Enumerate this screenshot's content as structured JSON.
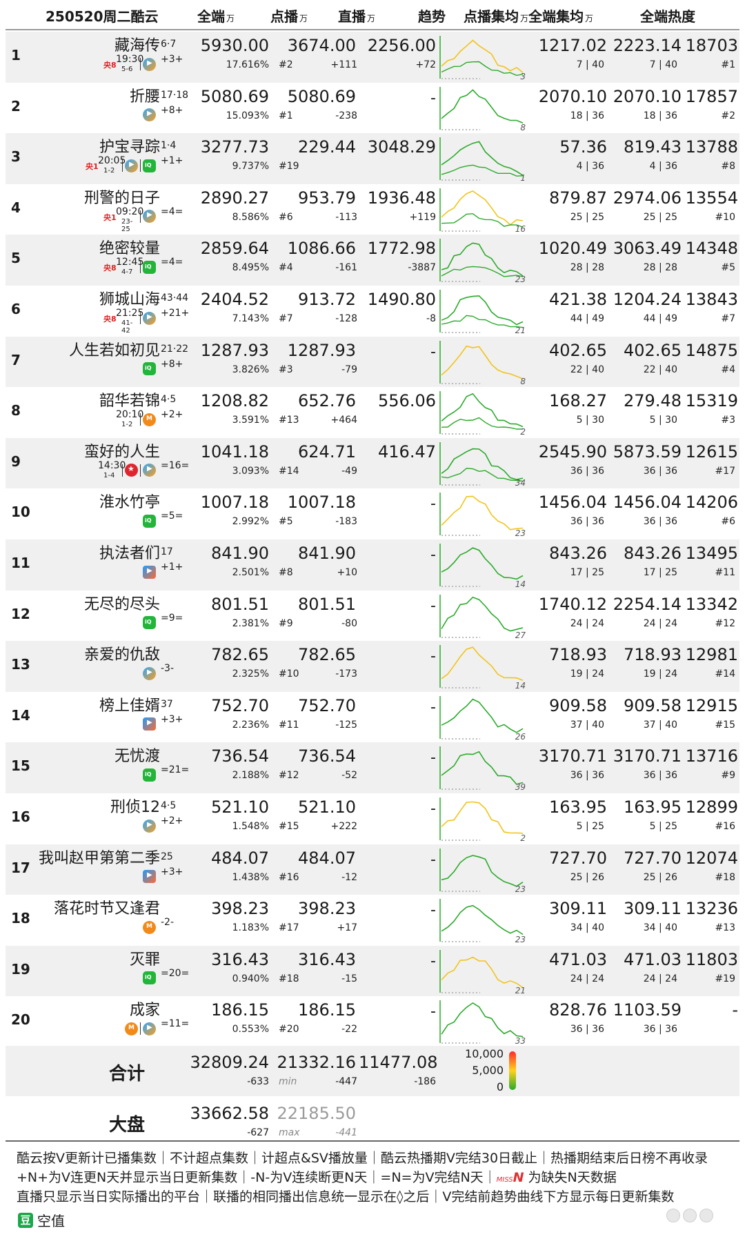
{
  "header": {
    "date_title": "250520周二酷云",
    "all": "全端",
    "vod": "点播",
    "live": "直播",
    "trend": "趋势",
    "vod_avg": "点播集均",
    "all_avg": "全端集均",
    "heat": "全端热度",
    "unit": "万"
  },
  "rows": [
    {
      "rank": "1",
      "title": "藏海传",
      "eps": "6·7",
      "change": "+3+",
      "tv": {
        "channel": "央8",
        "time": "19:30",
        "ep": "5-6"
      },
      "platforms": [
        "tencent-video"
      ],
      "all": "5930.00",
      "share": "17.616%",
      "vod": "3674.00",
      "vod_rank": "#2",
      "vod_delta": "+111",
      "live": "2256.00",
      "live_delta": "+72",
      "trend_days": "3",
      "vod_avg": "1217.02",
      "vod_avg_sub": "7 | 40",
      "all_avg": "2223.14",
      "all_avg_sub": "7 | 40",
      "heat": "18703",
      "heat_rank": "#1"
    },
    {
      "rank": "2",
      "title": "折腰",
      "eps": "17·18",
      "change": "+8+",
      "tv": null,
      "platforms": [
        "tencent-video"
      ],
      "all": "5080.69",
      "share": "15.093%",
      "vod": "5080.69",
      "vod_rank": "#1",
      "vod_delta": "-238",
      "live": "-",
      "live_delta": "",
      "trend_days": "8",
      "vod_avg": "2070.10",
      "vod_avg_sub": "18 | 36",
      "all_avg": "2070.10",
      "all_avg_sub": "18 | 36",
      "heat": "17857",
      "heat_rank": "#2"
    },
    {
      "rank": "3",
      "title": "护宝寻踪",
      "eps": "1·4",
      "change": "+1+",
      "tv": {
        "channel": "央1",
        "time": "20:05",
        "ep": "1-2"
      },
      "platforms": [
        "tencent-video",
        "iqiyi"
      ],
      "all": "3277.73",
      "share": "9.737%",
      "vod": "229.44",
      "vod_rank": "#19",
      "vod_delta": "",
      "live": "3048.29",
      "live_delta": "",
      "trend_days": "1",
      "vod_avg": "57.36",
      "vod_avg_sub": "4 | 36",
      "all_avg": "819.43",
      "all_avg_sub": "4 | 36",
      "heat": "13788",
      "heat_rank": "#8"
    },
    {
      "rank": "4",
      "title": "刑警的日子",
      "eps": "",
      "change": "=4=",
      "tv": {
        "channel": "央1",
        "time": "09:20",
        "ep": "23-25"
      },
      "platforms": [
        "tencent-video"
      ],
      "all": "2890.27",
      "share": "8.586%",
      "vod": "953.79",
      "vod_rank": "#6",
      "vod_delta": "-113",
      "live": "1936.48",
      "live_delta": "+119",
      "trend_days": "16",
      "vod_avg": "879.87",
      "vod_avg_sub": "25 | 25",
      "all_avg": "2974.06",
      "all_avg_sub": "25 | 25",
      "heat": "13554",
      "heat_rank": "#10"
    },
    {
      "rank": "5",
      "title": "绝密较量",
      "eps": "",
      "change": "=4=",
      "tv": {
        "channel": "央8",
        "time": "12:45",
        "ep": "4-7"
      },
      "platforms": [
        "iqiyi"
      ],
      "all": "2859.64",
      "share": "8.495%",
      "vod": "1086.66",
      "vod_rank": "#4",
      "vod_delta": "-161",
      "live": "1772.98",
      "live_delta": "-3887",
      "trend_days": "23",
      "vod_avg": "1020.49",
      "vod_avg_sub": "28 | 28",
      "all_avg": "3063.49",
      "all_avg_sub": "28 | 28",
      "heat": "14348",
      "heat_rank": "#5"
    },
    {
      "rank": "6",
      "title": "狮城山海",
      "eps": "43·44",
      "change": "+21+",
      "tv": {
        "channel": "央8",
        "time": "21:25",
        "ep": "41-42"
      },
      "platforms": [
        "tencent-video"
      ],
      "all": "2404.52",
      "share": "7.143%",
      "vod": "913.72",
      "vod_rank": "#7",
      "vod_delta": "-128",
      "live": "1490.80",
      "live_delta": "-8",
      "trend_days": "21",
      "vod_avg": "421.38",
      "vod_avg_sub": "44 | 49",
      "all_avg": "1204.24",
      "all_avg_sub": "44 | 49",
      "heat": "13843",
      "heat_rank": "#7"
    },
    {
      "rank": "7",
      "title": "人生若如初见",
      "eps": "21·22",
      "change": "+8+",
      "tv": null,
      "platforms": [
        "iqiyi"
      ],
      "all": "1287.93",
      "share": "3.826%",
      "vod": "1287.93",
      "vod_rank": "#3",
      "vod_delta": "-79",
      "live": "-",
      "live_delta": "",
      "trend_days": "8",
      "vod_avg": "402.65",
      "vod_avg_sub": "22 | 40",
      "all_avg": "402.65",
      "all_avg_sub": "22 | 40",
      "heat": "14875",
      "heat_rank": "#4"
    },
    {
      "rank": "8",
      "title": "韶华若锦",
      "eps": "4·5",
      "change": "+2+",
      "tv": {
        "channel": "",
        "time": "20:10",
        "ep": "1-2"
      },
      "platforms": [
        "mango"
      ],
      "all": "1208.82",
      "share": "3.591%",
      "vod": "652.76",
      "vod_rank": "#13",
      "vod_delta": "+464",
      "live": "556.06",
      "live_delta": "",
      "trend_days": "2",
      "vod_avg": "168.27",
      "vod_avg_sub": "5 | 30",
      "all_avg": "279.48",
      "all_avg_sub": "5 | 30",
      "heat": "15319",
      "heat_rank": "#3"
    },
    {
      "rank": "9",
      "title": "蛮好的人生",
      "eps": "",
      "change": "=16=",
      "tv": {
        "channel": "",
        "time": "14:30",
        "ep": "1-4"
      },
      "platforms": [
        "dragon",
        "tencent-video"
      ],
      "all": "1041.18",
      "share": "3.093%",
      "vod": "624.71",
      "vod_rank": "#14",
      "vod_delta": "-49",
      "live": "416.47",
      "live_delta": "",
      "trend_days": "34",
      "vod_avg": "2545.90",
      "vod_avg_sub": "36 | 36",
      "all_avg": "5873.59",
      "all_avg_sub": "36 | 36",
      "heat": "12615",
      "heat_rank": "#17"
    },
    {
      "rank": "10",
      "title": "淮水竹亭",
      "eps": "",
      "change": "=5=",
      "tv": null,
      "platforms": [
        "iqiyi"
      ],
      "all": "1007.18",
      "share": "2.992%",
      "vod": "1007.18",
      "vod_rank": "#5",
      "vod_delta": "-183",
      "live": "-",
      "live_delta": "",
      "trend_days": "23",
      "vod_avg": "1456.04",
      "vod_avg_sub": "36 | 36",
      "all_avg": "1456.04",
      "all_avg_sub": "36 | 36",
      "heat": "14206",
      "heat_rank": "#6"
    },
    {
      "rank": "11",
      "title": "执法者们",
      "eps": "17",
      "change": "+1+",
      "tv": null,
      "platforms": [
        "youku"
      ],
      "all": "841.90",
      "share": "2.501%",
      "vod": "841.90",
      "vod_rank": "#8",
      "vod_delta": "+10",
      "live": "-",
      "live_delta": "",
      "trend_days": "14",
      "vod_avg": "843.26",
      "vod_avg_sub": "17 | 25",
      "all_avg": "843.26",
      "all_avg_sub": "17 | 25",
      "heat": "13495",
      "heat_rank": "#11"
    },
    {
      "rank": "12",
      "title": "无尽的尽头",
      "eps": "",
      "change": "=9=",
      "tv": null,
      "platforms": [
        "iqiyi"
      ],
      "all": "801.51",
      "share": "2.381%",
      "vod": "801.51",
      "vod_rank": "#9",
      "vod_delta": "-80",
      "live": "-",
      "live_delta": "",
      "trend_days": "27",
      "vod_avg": "1740.12",
      "vod_avg_sub": "24 | 24",
      "all_avg": "2254.14",
      "all_avg_sub": "24 | 24",
      "heat": "13342",
      "heat_rank": "#12"
    },
    {
      "rank": "13",
      "title": "亲爱的仇敌",
      "eps": "",
      "change": "-3-",
      "tv": null,
      "platforms": [
        "tencent-video"
      ],
      "all": "782.65",
      "share": "2.325%",
      "vod": "782.65",
      "vod_rank": "#10",
      "vod_delta": "-173",
      "live": "-",
      "live_delta": "",
      "trend_days": "14",
      "vod_avg": "718.93",
      "vod_avg_sub": "19 | 24",
      "all_avg": "718.93",
      "all_avg_sub": "19 | 24",
      "heat": "12981",
      "heat_rank": "#14"
    },
    {
      "rank": "14",
      "title": "榜上佳婿",
      "eps": "37",
      "change": "+3+",
      "tv": null,
      "platforms": [
        "youku"
      ],
      "all": "752.70",
      "share": "2.236%",
      "vod": "752.70",
      "vod_rank": "#11",
      "vod_delta": "-125",
      "live": "-",
      "live_delta": "",
      "trend_days": "26",
      "vod_avg": "909.58",
      "vod_avg_sub": "37 | 40",
      "all_avg": "909.58",
      "all_avg_sub": "37 | 40",
      "heat": "12915",
      "heat_rank": "#15"
    },
    {
      "rank": "15",
      "title": "无忧渡",
      "eps": "",
      "change": "=21=",
      "tv": null,
      "platforms": [
        "iqiyi"
      ],
      "all": "736.54",
      "share": "2.188%",
      "vod": "736.54",
      "vod_rank": "#12",
      "vod_delta": "-52",
      "live": "-",
      "live_delta": "",
      "trend_days": "39",
      "vod_avg": "3170.71",
      "vod_avg_sub": "36 | 36",
      "all_avg": "3170.71",
      "all_avg_sub": "36 | 36",
      "heat": "13716",
      "heat_rank": "#9"
    },
    {
      "rank": "16",
      "title": "刑侦12",
      "eps": "4·5",
      "change": "+2+",
      "tv": null,
      "platforms": [
        "tencent-video"
      ],
      "all": "521.10",
      "share": "1.548%",
      "vod": "521.10",
      "vod_rank": "#15",
      "vod_delta": "+222",
      "live": "-",
      "live_delta": "",
      "trend_days": "2",
      "vod_avg": "163.95",
      "vod_avg_sub": "5 | 25",
      "all_avg": "163.95",
      "all_avg_sub": "5 | 25",
      "heat": "12899",
      "heat_rank": "#16"
    },
    {
      "rank": "17",
      "title": "我叫赵甲第第二季",
      "eps": "25",
      "change": "+3+",
      "tv": null,
      "platforms": [
        "youku"
      ],
      "all": "484.07",
      "share": "1.438%",
      "vod": "484.07",
      "vod_rank": "#16",
      "vod_delta": "-12",
      "live": "-",
      "live_delta": "",
      "trend_days": "23",
      "vod_avg": "727.70",
      "vod_avg_sub": "25 | 26",
      "all_avg": "727.70",
      "all_avg_sub": "25 | 26",
      "heat": "12074",
      "heat_rank": "#18"
    },
    {
      "rank": "18",
      "title": "落花时节又逢君",
      "eps": "",
      "change": "-2-",
      "tv": null,
      "platforms": [
        "mango"
      ],
      "all": "398.23",
      "share": "1.183%",
      "vod": "398.23",
      "vod_rank": "#17",
      "vod_delta": "+17",
      "live": "-",
      "live_delta": "",
      "trend_days": "23",
      "vod_avg": "309.11",
      "vod_avg_sub": "34 | 40",
      "all_avg": "309.11",
      "all_avg_sub": "34 | 40",
      "heat": "13236",
      "heat_rank": "#13"
    },
    {
      "rank": "19",
      "title": "灭罪",
      "eps": "",
      "change": "=20=",
      "tv": null,
      "platforms": [
        "iqiyi"
      ],
      "all": "316.43",
      "share": "0.940%",
      "vod": "316.43",
      "vod_rank": "#18",
      "vod_delta": "-15",
      "live": "-",
      "live_delta": "",
      "trend_days": "21",
      "vod_avg": "471.03",
      "vod_avg_sub": "24 | 24",
      "all_avg": "471.03",
      "all_avg_sub": "24 | 24",
      "heat": "11803",
      "heat_rank": "#19"
    },
    {
      "rank": "20",
      "title": "成家",
      "eps": "",
      "change": "=11=",
      "tv": null,
      "platforms": [
        "mango",
        "tencent-video"
      ],
      "all": "186.15",
      "share": "0.553%",
      "vod": "186.15",
      "vod_rank": "#20",
      "vod_delta": "-22",
      "live": "-",
      "live_delta": "",
      "trend_days": "33",
      "vod_avg": "828.76",
      "vod_avg_sub": "36 | 36",
      "all_avg": "1103.59",
      "all_avg_sub": "36 | 36",
      "heat": "-",
      "heat_rank": ""
    }
  ],
  "totals": {
    "label": "合计",
    "all": "32809.24",
    "all_delta": "-633",
    "vod": "21332.16",
    "vod_tag": "min",
    "vod_delta": "-447",
    "live": "11477.08",
    "live_delta": "-186",
    "scale_top": "10,000",
    "scale_mid": "5,000",
    "scale_bot": "0"
  },
  "market": {
    "label": "大盘",
    "all": "33662.58",
    "all_delta": "-627",
    "vod": "22185.50",
    "vod_tag": "max",
    "vod_delta": "-441"
  },
  "footer": {
    "line1": "酷云按V更新计已播集数｜不计超点集数｜计超点&SV播放量｜酷云热播期V完结30日截止｜热播期结束后日榜不再收录",
    "line2a": "+N+为V连更N天并显示当日更新集数｜-N-为V连续断更N天｜=N=为V完结N天｜",
    "miss": "MISS",
    "missn": "N",
    "line2b": " 为缺失N天数据",
    "line3": "直播只显示当日实际播出的平台｜联播的相同播出信息统一显示在◊之后｜V完结前趋势曲线下方显示每日更新集数",
    "brand_icon": "豆",
    "brand": "空值"
  },
  "colors": {
    "green": "#2aaa2a",
    "yellow": "#f0c419",
    "red": "#e03a2a",
    "row_alt": "#f0f0f0"
  }
}
